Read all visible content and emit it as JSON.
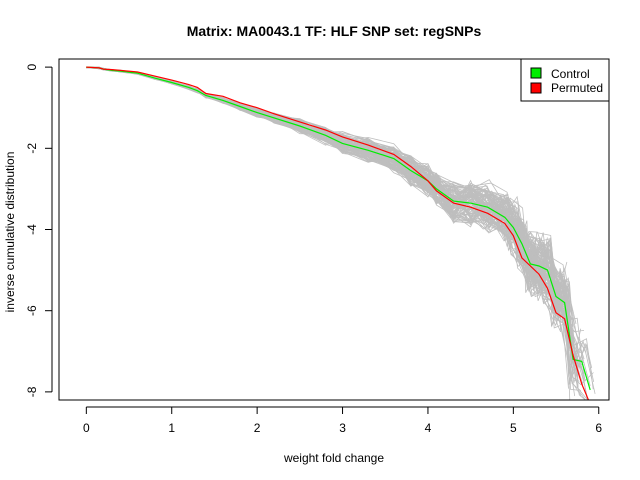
{
  "chart_data": {
    "type": "line",
    "title": "Matrix: MA0043.1 TF: HLF SNP set: regSNPs",
    "xlabel": "weight fold change",
    "ylabel": "inverse cumulative distribution",
    "xlim": [
      -0.32,
      6.12
    ],
    "ylim": [
      -8.2,
      0.2
    ],
    "x_ticks": [
      0,
      1,
      2,
      3,
      4,
      5,
      6
    ],
    "y_ticks": [
      0,
      -2,
      -4,
      -6,
      -8
    ],
    "legend": {
      "position": "top-right",
      "entries": [
        {
          "label": "Control",
          "color": "#00ee00"
        },
        {
          "label": "Permuted",
          "color": "#ff0000"
        }
      ]
    },
    "colors": {
      "background_lines": "#bebebe",
      "control": "#00ee00",
      "permuted": "#ff0000"
    },
    "background_series_count": 100,
    "series": [
      {
        "name": "Control",
        "color": "#00ee00",
        "x": [
          0.0,
          0.15,
          0.2,
          0.3,
          0.4,
          0.6,
          0.8,
          1.0,
          1.2,
          1.3,
          1.4,
          1.6,
          1.8,
          2.0,
          2.2,
          2.5,
          2.8,
          3.0,
          3.3,
          3.6,
          3.8,
          4.0,
          4.1,
          4.3,
          4.5,
          4.7,
          4.9,
          5.0,
          5.1,
          5.2,
          5.3,
          5.4,
          5.5,
          5.6,
          5.7,
          5.8,
          5.9
        ],
        "y": [
          0.0,
          -0.02,
          -0.05,
          -0.08,
          -0.1,
          -0.15,
          -0.27,
          -0.38,
          -0.5,
          -0.58,
          -0.7,
          -0.82,
          -0.97,
          -1.12,
          -1.25,
          -1.45,
          -1.68,
          -1.88,
          -2.05,
          -2.25,
          -2.55,
          -2.8,
          -3.0,
          -3.3,
          -3.35,
          -3.45,
          -3.7,
          -3.95,
          -4.35,
          -4.85,
          -4.9,
          -5.0,
          -5.65,
          -5.8,
          -7.2,
          -7.25,
          -7.95
        ]
      },
      {
        "name": "Permuted",
        "color": "#ff0000",
        "x": [
          0.0,
          0.15,
          0.2,
          0.3,
          0.4,
          0.6,
          0.8,
          1.0,
          1.2,
          1.3,
          1.4,
          1.6,
          1.8,
          2.0,
          2.2,
          2.5,
          2.8,
          3.0,
          3.3,
          3.6,
          3.8,
          4.0,
          4.1,
          4.3,
          4.5,
          4.7,
          4.9,
          5.0,
          5.1,
          5.2,
          5.3,
          5.4,
          5.5,
          5.6,
          5.7,
          5.8,
          5.9
        ],
        "y": [
          0.0,
          -0.02,
          -0.05,
          -0.06,
          -0.08,
          -0.12,
          -0.22,
          -0.32,
          -0.43,
          -0.5,
          -0.65,
          -0.72,
          -0.88,
          -1.0,
          -1.15,
          -1.35,
          -1.55,
          -1.72,
          -1.92,
          -2.15,
          -2.45,
          -2.8,
          -3.05,
          -3.35,
          -3.45,
          -3.6,
          -3.85,
          -4.15,
          -4.7,
          -4.9,
          -5.1,
          -5.45,
          -6.05,
          -6.2,
          -7.1,
          -7.8,
          -8.3
        ]
      }
    ]
  }
}
